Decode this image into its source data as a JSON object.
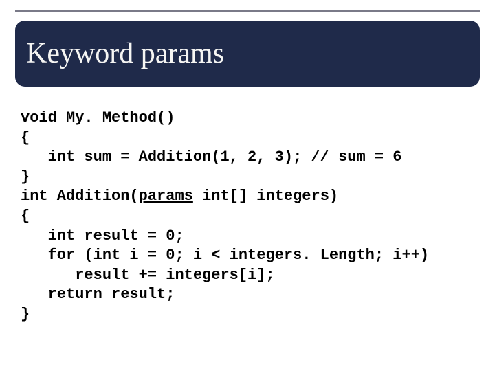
{
  "slide": {
    "title": "Keyword params",
    "background_color": "#ffffff",
    "title_box": {
      "bg_color": "#1f2a4a",
      "text_color": "#f5f5f3",
      "border_radius": 14,
      "font_size": 42
    },
    "divider_color": "#7a7a88",
    "code": {
      "font_family": "Courier New",
      "font_size": 22,
      "font_weight": "bold",
      "text_color": "#000000",
      "keyword_style": "underline",
      "lines": [
        "void My. Method()",
        "{",
        "   int sum = Addition(1, 2, 3); // sum = 6",
        "}",
        "int Addition(params int[] integers)",
        "{",
        "   int result = 0;",
        "   for (int i = 0; i < integers. Length; i++)",
        "      result += integers[i];",
        "   return result;",
        "}"
      ],
      "keyword": "params"
    }
  }
}
